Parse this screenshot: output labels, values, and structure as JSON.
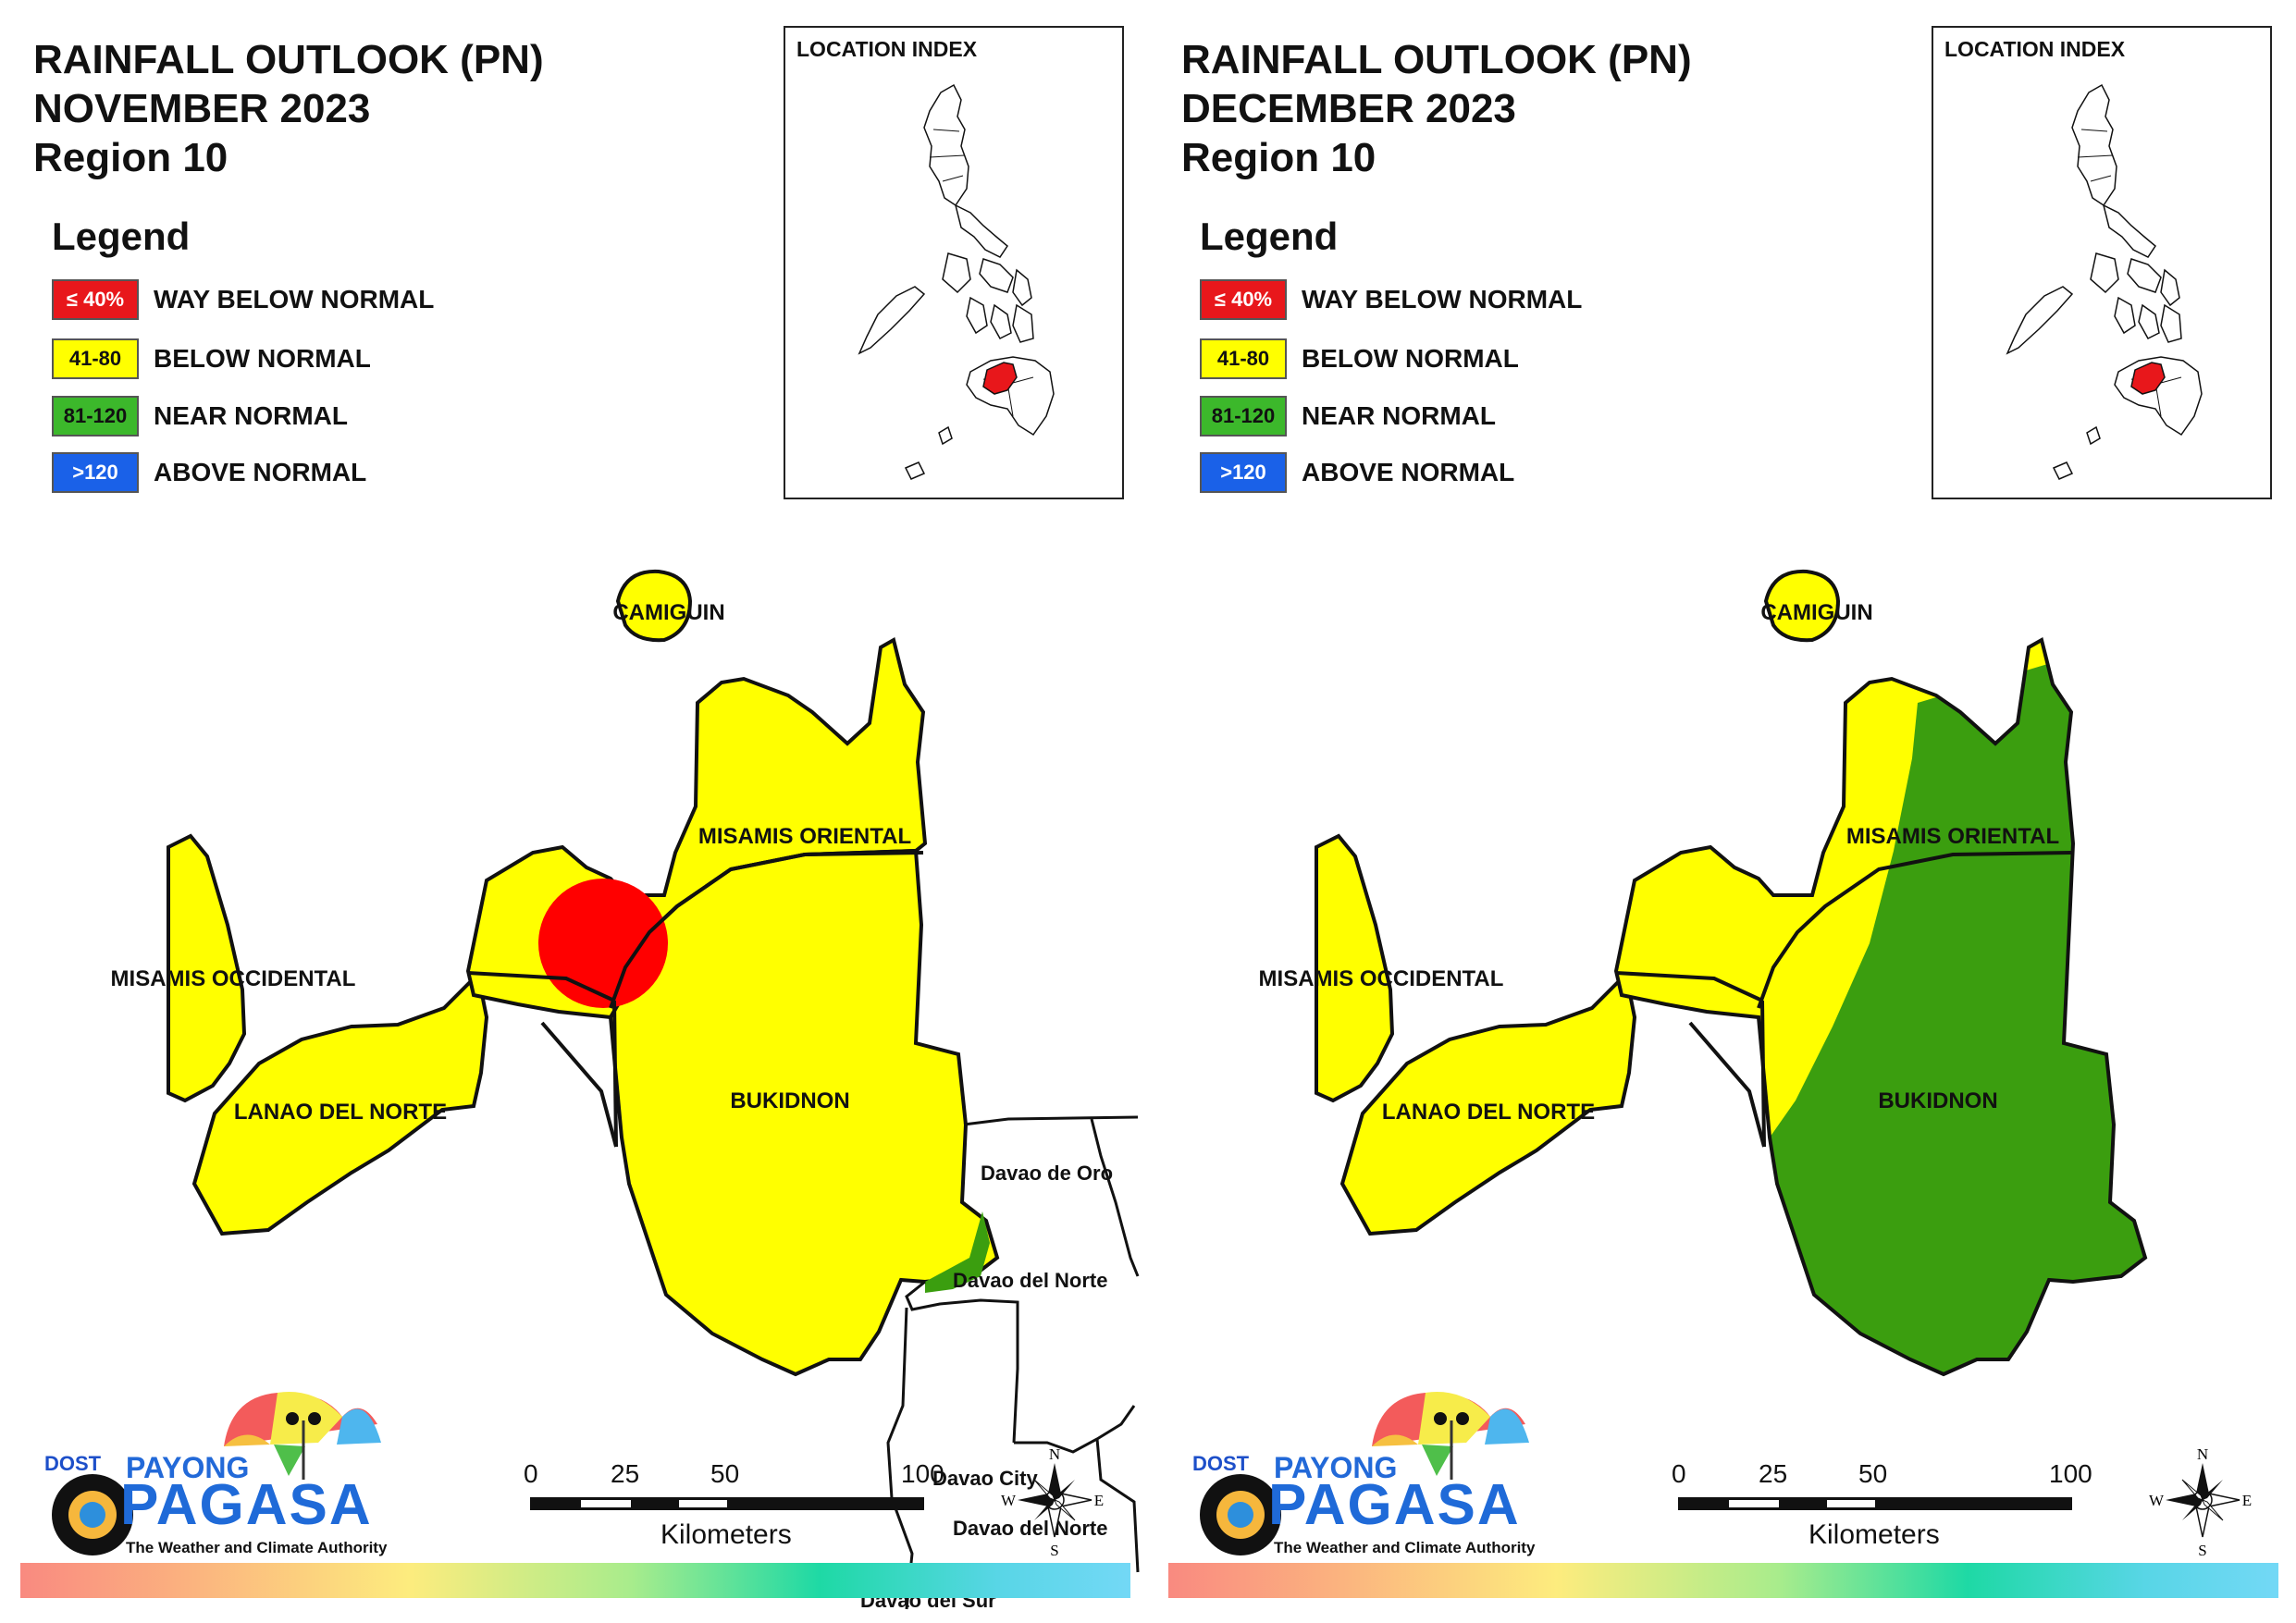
{
  "legend": {
    "title": "Legend",
    "items": [
      {
        "swatch": "≤ 40%",
        "label": "WAY BELOW NORMAL",
        "color": "#e8171b"
      },
      {
        "swatch": "41-80",
        "label": "BELOW NORMAL",
        "color": "#ffff00"
      },
      {
        "swatch": "81-120",
        "label": "NEAR NORMAL",
        "color": "#3cb82b"
      },
      {
        "swatch": ">120",
        "label": "ABOVE NORMAL",
        "color": "#1a61e8"
      }
    ]
  },
  "location_index": {
    "title": "LOCATION INDEX",
    "highlight_color": "#e8171b"
  },
  "colors": {
    "below_normal": "#ffff00",
    "near_normal": "#3b9e0f",
    "way_below": "#ff0000"
  },
  "scale": {
    "ticks": [
      "0",
      "25",
      "50",
      "100"
    ],
    "unit": "Kilometers"
  },
  "compass": {
    "n": "N",
    "s": "S",
    "e": "E",
    "w": "W"
  },
  "logo": {
    "dost": "DOST",
    "payong": "PAYONG",
    "pagasa": "PAGASA",
    "tagline": "The Weather and Climate Authority"
  },
  "maps": [
    {
      "title_line1": "RAINFALL OUTLOOK (PN)",
      "title_line2": "NOVEMBER 2023",
      "title_line3": "Region 10",
      "provinces": {
        "camiguin": "CAMIGUIN",
        "misamis_oriental": "MISAMIS ORIENTAL",
        "misamis_occidental": "MISAMIS OCCIDENTAL",
        "lanao_del_norte": "LANAO DEL NORTE",
        "bukidnon": "BUKIDNON"
      },
      "neighbors": {
        "davao_de_oro": "Davao de Oro",
        "davao_del_norte_1": "Davao del Norte",
        "davao_city": "Davao City",
        "davao_del_norte_2": "Davao del Norte",
        "davao_del_sur": "Davao del Sur"
      },
      "categories": {
        "region_base": "BELOW NORMAL",
        "red_spot": "WAY BELOW NORMAL",
        "south_east_edge": "NEAR NORMAL"
      }
    },
    {
      "title_line1": "RAINFALL OUTLOOK (PN)",
      "title_line2": "DECEMBER 2023",
      "title_line3": "Region 10",
      "provinces": {
        "camiguin": "CAMIGUIN",
        "misamis_oriental": "MISAMIS ORIENTAL",
        "misamis_occidental": "MISAMIS OCCIDENTAL",
        "lanao_del_norte": "LANAO DEL NORTE",
        "bukidnon": "BUKIDNON"
      },
      "categories": {
        "west": "BELOW NORMAL",
        "east": "NEAR NORMAL"
      }
    }
  ]
}
